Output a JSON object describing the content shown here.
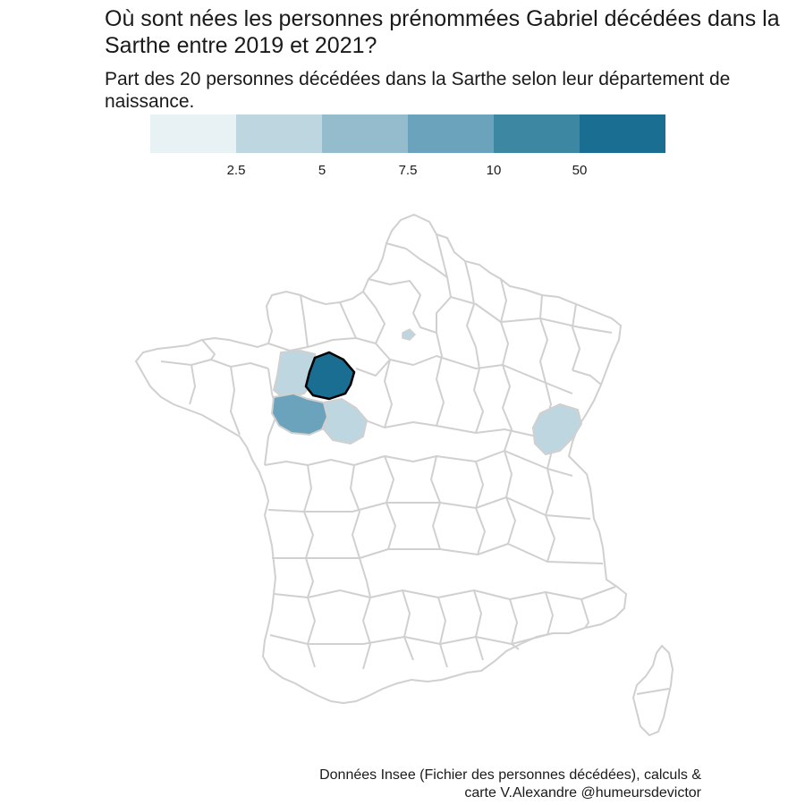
{
  "title": "Où sont nées les personnes prénommées Gabriel décédées dans la Sarthe entre 2019 et 2021?",
  "subtitle": "Part des 20 personnes décédées dans la Sarthe selon leur département de naissance.",
  "legend": {
    "colors": [
      "#e8f1f4",
      "#bdd6e0",
      "#94bccc",
      "#6aa3bb",
      "#3e87a3",
      "#1a6e92"
    ],
    "ticks": [
      "2.5",
      "5",
      "7.5",
      "10",
      "50"
    ]
  },
  "map": {
    "outline_color": "#d0d0d0",
    "highlight_color": "#000000",
    "departments": [
      {
        "name": "Sarthe",
        "bin": 5,
        "color": "#1a6e92",
        "highlighted": true
      },
      {
        "name": "Maine-et-Loire",
        "bin": 3,
        "color": "#6aa3bb",
        "highlighted": false
      },
      {
        "name": "Mayenne",
        "bin": 1,
        "color": "#bdd6e0",
        "highlighted": false
      },
      {
        "name": "Indre-et-Loire",
        "bin": 1,
        "color": "#bdd6e0",
        "highlighted": false
      },
      {
        "name": "Doubs",
        "bin": 1,
        "color": "#bdd6e0",
        "highlighted": false
      },
      {
        "name": "Paris",
        "bin": 1,
        "color": "#bdd6e0",
        "highlighted": false
      }
    ]
  },
  "caption": {
    "line1": "Données Insee (Fichier des personnes décédées), calculs &",
    "line2": "carte V.Alexandre @humeursdevictor"
  }
}
